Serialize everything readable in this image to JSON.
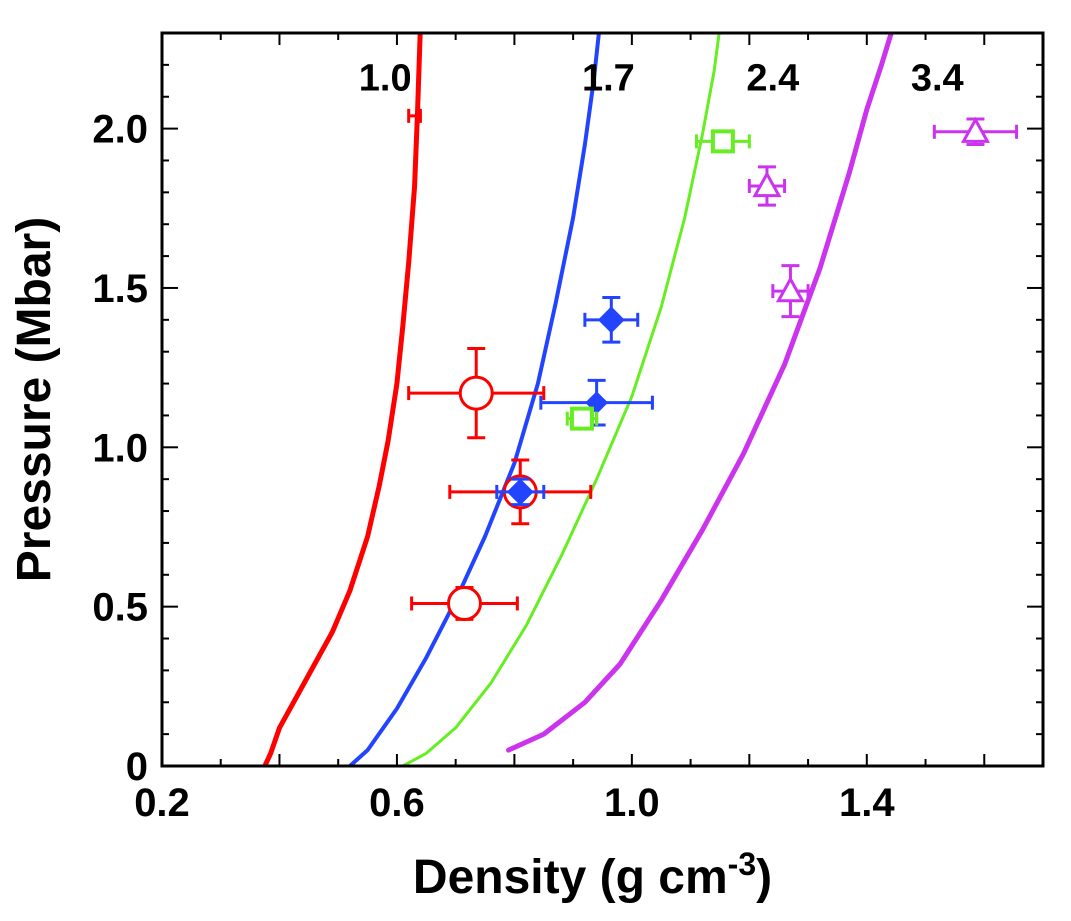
{
  "chart_data": {
    "type": "line",
    "title": "",
    "xlabel": "Density (g cm",
    "xlabel_sup": "-3",
    "xlabel_close": ")",
    "ylabel": "Pressure (Mbar)",
    "xlim": [
      0.2,
      1.7
    ],
    "ylim": [
      0,
      2.3
    ],
    "xticks": [
      0.2,
      0.6,
      1.0,
      1.4
    ],
    "xtick_labels": [
      "0.2",
      "0.6",
      "1.0",
      "1.4"
    ],
    "yticks": [
      0,
      0.5,
      1.0,
      1.5,
      2.0
    ],
    "ytick_labels": [
      "0",
      "0.5",
      "1.0",
      "1.5",
      "2.0"
    ],
    "curve_labels": [
      {
        "text": "1.0",
        "x": 0.58,
        "y": 2.12
      },
      {
        "text": "1.7",
        "x": 0.96,
        "y": 2.12
      },
      {
        "text": "2.4",
        "x": 1.24,
        "y": 2.12
      },
      {
        "text": "3.4",
        "x": 1.52,
        "y": 2.12
      }
    ],
    "series": [
      {
        "name": "1.0",
        "color": "#ff0000",
        "width": 5,
        "x": [
          0.375,
          0.385,
          0.4,
          0.43,
          0.46,
          0.49,
          0.52,
          0.55,
          0.57,
          0.585,
          0.6,
          0.61,
          0.62,
          0.63,
          0.635,
          0.64
        ],
        "y": [
          0.0,
          0.04,
          0.12,
          0.22,
          0.32,
          0.42,
          0.55,
          0.72,
          0.88,
          1.02,
          1.2,
          1.38,
          1.58,
          1.82,
          2.05,
          2.32
        ]
      },
      {
        "name": "1.7",
        "color": "#2244ff",
        "width": 4,
        "x": [
          0.52,
          0.55,
          0.6,
          0.65,
          0.7,
          0.75,
          0.8,
          0.84,
          0.87,
          0.9,
          0.92,
          0.935,
          0.945
        ],
        "y": [
          0.0,
          0.05,
          0.18,
          0.34,
          0.52,
          0.72,
          0.95,
          1.2,
          1.45,
          1.72,
          1.95,
          2.15,
          2.32
        ]
      },
      {
        "name": "2.4",
        "color": "#66ee22",
        "width": 3,
        "x": [
          0.61,
          0.65,
          0.7,
          0.76,
          0.82,
          0.88,
          0.94,
          1.0,
          1.05,
          1.09,
          1.12,
          1.14,
          1.15
        ],
        "y": [
          0.0,
          0.04,
          0.12,
          0.26,
          0.44,
          0.66,
          0.9,
          1.16,
          1.44,
          1.72,
          1.98,
          2.18,
          2.32
        ]
      },
      {
        "name": "3.4",
        "color": "#cc33ee",
        "width": 5,
        "x": [
          0.79,
          0.85,
          0.92,
          0.98,
          1.05,
          1.12,
          1.19,
          1.26,
          1.32,
          1.37,
          1.4,
          1.425,
          1.445
        ],
        "y": [
          0.05,
          0.1,
          0.2,
          0.32,
          0.52,
          0.74,
          0.98,
          1.26,
          1.56,
          1.86,
          2.06,
          2.2,
          2.32
        ]
      }
    ],
    "points": [
      {
        "series": "1.0",
        "marker": "circle",
        "color": "#ff0000",
        "size": 16,
        "filled": false,
        "x": 0.715,
        "y": 0.51,
        "xerr": 0.09,
        "yerr": 0.05
      },
      {
        "series": "1.0",
        "marker": "circle",
        "color": "#ff0000",
        "size": 16,
        "filled": false,
        "x": 0.735,
        "y": 1.17,
        "xerr": 0.115,
        "yerr": 0.14
      },
      {
        "series": "1.0",
        "marker": "circle",
        "color": "#ff0000",
        "size": 16,
        "filled": false,
        "x": 0.81,
        "y": 0.86,
        "xerr": 0.12,
        "yerr": 0.1
      },
      {
        "series": "1.0",
        "marker": "none",
        "color": "#ff0000",
        "size": 0,
        "filled": false,
        "x": 0.63,
        "y": 2.04,
        "xerr": 0.01,
        "yerr": 0.0
      },
      {
        "series": "1.7",
        "marker": "diamond",
        "color": "#2244ff",
        "size": 12,
        "filled": true,
        "x": 0.81,
        "y": 0.86,
        "xerr": 0.04,
        "yerr": 0.04
      },
      {
        "series": "1.7",
        "marker": "diamond",
        "color": "#2244ff",
        "size": 10,
        "filled": true,
        "x": 0.94,
        "y": 1.14,
        "xerr": 0.095,
        "yerr": 0.07
      },
      {
        "series": "1.7",
        "marker": "diamond",
        "color": "#2244ff",
        "size": 12,
        "filled": true,
        "x": 0.965,
        "y": 1.4,
        "xerr": 0.045,
        "yerr": 0.07
      },
      {
        "series": "2.4",
        "marker": "square",
        "color": "#66ee22",
        "size": 10,
        "filled": false,
        "x": 0.915,
        "y": 1.09,
        "xerr": 0.025,
        "yerr": 0.02
      },
      {
        "series": "2.4",
        "marker": "square",
        "color": "#66ee22",
        "size": 10,
        "filled": false,
        "x": 1.155,
        "y": 1.96,
        "xerr": 0.045,
        "yerr": 0.03
      },
      {
        "series": "3.4",
        "marker": "triangle",
        "color": "#cc33ee",
        "size": 12,
        "filled": false,
        "x": 1.23,
        "y": 1.82,
        "xerr": 0.03,
        "yerr": 0.06
      },
      {
        "series": "3.4",
        "marker": "triangle",
        "color": "#cc33ee",
        "size": 12,
        "filled": false,
        "x": 1.27,
        "y": 1.49,
        "xerr": 0.03,
        "yerr": 0.08
      },
      {
        "series": "3.4",
        "marker": "triangle",
        "color": "#cc33ee",
        "size": 12,
        "filled": false,
        "x": 1.585,
        "y": 1.99,
        "xerr": 0.07,
        "yerr": 0.04
      }
    ]
  }
}
